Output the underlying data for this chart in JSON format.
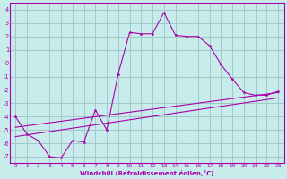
{
  "xlabel": "Windchill (Refroidissement éolien,°C)",
  "bg_color": "#c8ecec",
  "grid_color": "#a0c8c8",
  "line_color": "#aa00aa",
  "xlim": [
    -0.5,
    23.5
  ],
  "ylim": [
    -7.5,
    4.5
  ],
  "xticks": [
    0,
    1,
    2,
    3,
    4,
    5,
    6,
    7,
    8,
    9,
    10,
    11,
    12,
    13,
    14,
    15,
    16,
    17,
    18,
    19,
    20,
    21,
    22,
    23
  ],
  "yticks": [
    -7,
    -6,
    -5,
    -4,
    -3,
    -2,
    -1,
    0,
    1,
    2,
    3,
    4
  ],
  "line1_x": [
    0,
    1,
    2,
    3,
    4,
    5,
    6,
    7,
    8,
    9,
    10,
    11,
    12,
    13,
    14,
    15,
    16,
    17,
    18,
    19,
    20,
    21,
    22,
    23
  ],
  "line1_y": [
    -4.0,
    -5.3,
    -5.8,
    -7.0,
    -7.1,
    -5.8,
    -5.9,
    -3.5,
    -5.0,
    -0.8,
    2.3,
    2.2,
    2.2,
    3.8,
    2.1,
    2.0,
    2.0,
    1.3,
    -0.1,
    -1.2,
    -2.2,
    -2.4,
    -2.4,
    -2.1
  ],
  "line2_x": [
    0,
    23
  ],
  "line2_y": [
    -4.8,
    -2.2
  ],
  "line3_x": [
    0,
    23
  ],
  "line3_y": [
    -5.5,
    -2.6
  ]
}
